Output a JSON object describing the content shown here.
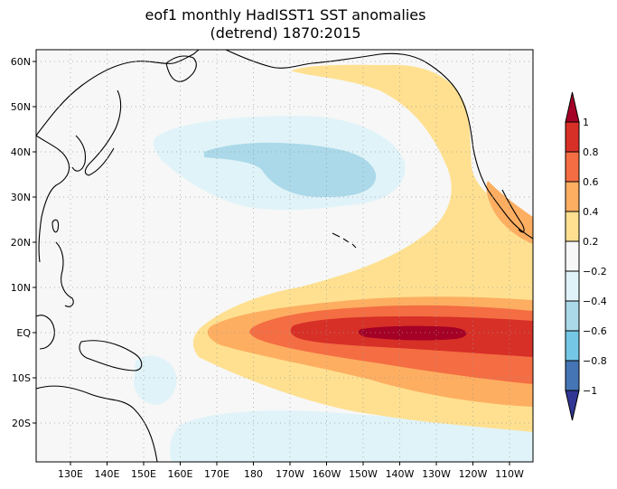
{
  "title": {
    "line1": "eof1  monthly  HadISST1  SST  anomalies",
    "line2": "(detrend)  1870:2015"
  },
  "map": {
    "lat_ticks": [
      "60N",
      "50N",
      "40N",
      "30N",
      "20N",
      "10N",
      "EQ",
      "10S",
      "20S"
    ],
    "lon_ticks": [
      "130E",
      "140E",
      "150E",
      "160E",
      "170E",
      "180",
      "170W",
      "160W",
      "150W",
      "140W",
      "130W",
      "120W",
      "110W"
    ],
    "lon_range": [
      "121E",
      "106W"
    ],
    "lat_range": [
      "29S",
      "63N"
    ],
    "grid": "dotted"
  },
  "colorbar": {
    "labels": [
      "1",
      "0.8",
      "0.6",
      "0.4",
      "0.2",
      "−0.2",
      "−0.4",
      "−0.6",
      "−0.8",
      "−1"
    ],
    "levels": [
      1,
      0.8,
      0.6,
      0.4,
      0.2,
      -0.2,
      -0.4,
      -0.6,
      -0.8,
      -1
    ],
    "colors": {
      "above_1": "#a50026",
      "0.8_1": "#d73027",
      "0.6_0.8": "#f46d43",
      "0.4_0.6": "#fdae61",
      "0.2_0.4": "#fee090",
      "-0.2_0.2": "#f7f7f7",
      "-0.4_-0.2": "#e0f3f8",
      "-0.6_-0.4": "#abd9e9",
      "-0.8_-0.6": "#74c8e6",
      "-1_-0.8": "#4575b4",
      "below_-1": "#313695"
    }
  }
}
